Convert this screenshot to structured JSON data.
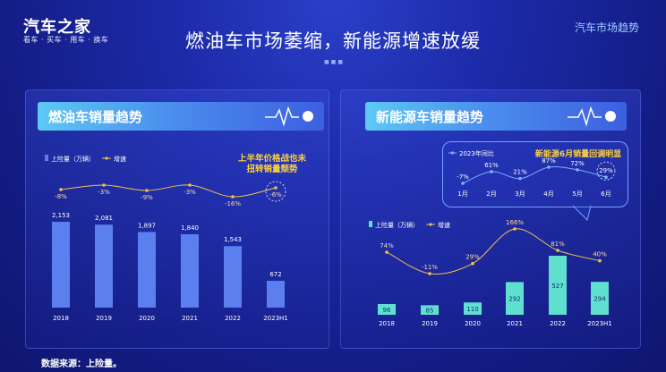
{
  "header": {
    "logo_main": "汽车之家",
    "logo_sub": "看车 · 买车 · 用车 · 换车",
    "title": "燃油车市场萎缩，新能源增速放缓",
    "corner_tag": "汽车市场趋势"
  },
  "footer": {
    "source": "数据来源：上险量。"
  },
  "colors": {
    "bar_fuel": "#5b7fee",
    "bar_nev": "#5fe0cf",
    "growth_line": "#f0c24a",
    "annotation": "#ffd23a"
  },
  "chart_data": [
    {
      "type": "bar",
      "title": "燃油车销量趋势",
      "legend": [
        "上险量（万辆）",
        "增速"
      ],
      "categories": [
        "2018",
        "2019",
        "2020",
        "2021",
        "2022",
        "2023H1"
      ],
      "series": [
        {
          "name": "上险量（万辆）",
          "values": [
            2153,
            2081,
            1897,
            1840,
            1543,
            672
          ]
        },
        {
          "name": "增速",
          "values": [
            -8,
            -3,
            -9,
            -3,
            -16,
            -6
          ],
          "labels": [
            "-8%",
            "-3%",
            "-9%",
            "-3%",
            "-16%",
            "-6%"
          ]
        }
      ],
      "value_labels": [
        "2,153",
        "2,081",
        "1,897",
        "1,840",
        "1,543",
        "672"
      ],
      "annotation": [
        "上半年价格战也未",
        "扭转销量颓势"
      ]
    },
    {
      "type": "bar",
      "title": "新能源车销量趋势",
      "legend": [
        "上险量（万辆）",
        "增速"
      ],
      "categories": [
        "2018",
        "2019",
        "2020",
        "2021",
        "2022",
        "2023H1"
      ],
      "series": [
        {
          "name": "上险量（万辆）",
          "values": [
            96,
            85,
            110,
            292,
            527,
            294
          ]
        },
        {
          "name": "增速",
          "values": [
            74,
            -11,
            29,
            166,
            81,
            40
          ],
          "labels": [
            "74%",
            "-11%",
            "29%",
            "166%",
            "81%",
            "40%"
          ]
        }
      ]
    },
    {
      "type": "line",
      "legend": [
        "2023年同比"
      ],
      "categories": [
        "1月",
        "2月",
        "3月",
        "4月",
        "5月",
        "6月"
      ],
      "series": [
        {
          "name": "2023年同比",
          "values": [
            -7,
            61,
            21,
            87,
            72,
            29
          ],
          "labels": [
            "-7%",
            "61%",
            "21%",
            "87%",
            "72%",
            "29%"
          ]
        }
      ],
      "annotation": "新能源6月销量回调明显"
    }
  ]
}
